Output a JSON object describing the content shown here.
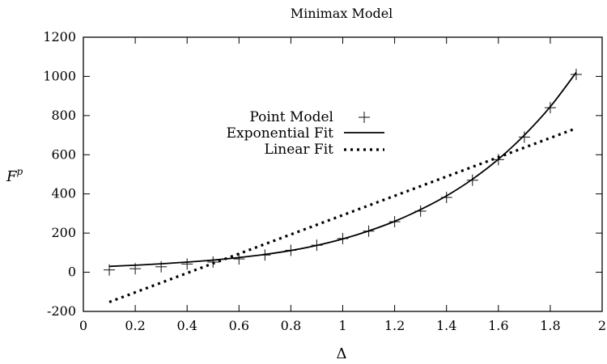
{
  "chart_data": {
    "type": "scatter",
    "title": "Minimax Model",
    "xlabel": "Δ",
    "ylabel": "F",
    "ylabel_superscript": "p",
    "xlim": [
      0,
      2
    ],
    "ylim": [
      -200,
      1200
    ],
    "x_ticks": [
      0,
      0.2,
      0.4,
      0.6,
      0.8,
      1,
      1.2,
      1.4,
      1.6,
      1.8,
      2
    ],
    "x_tick_labels": [
      "0",
      "0.2",
      "0.4",
      "0.6",
      "0.8",
      "1",
      "1.2",
      "1.4",
      "1.6",
      "1.8",
      "2"
    ],
    "y_ticks": [
      -200,
      0,
      200,
      400,
      600,
      800,
      1000,
      1200
    ],
    "y_tick_labels": [
      "-200",
      "0",
      "200",
      "400",
      "600",
      "800",
      "1000",
      "1200"
    ],
    "grid": false,
    "legend_position": "center-left",
    "series": [
      {
        "name": "Point Model",
        "style": "markers",
        "marker": "plus",
        "x": [
          0.1,
          0.2,
          0.3,
          0.4,
          0.5,
          0.6,
          0.7,
          0.8,
          0.9,
          1.0,
          1.1,
          1.2,
          1.3,
          1.4,
          1.5,
          1.6,
          1.7,
          1.8,
          1.9
        ],
        "y": [
          12,
          18,
          28,
          42,
          52,
          68,
          88,
          112,
          138,
          172,
          210,
          258,
          312,
          382,
          470,
          575,
          690,
          840,
          1010
        ]
      },
      {
        "name": "Exponential Fit",
        "style": "solid-line",
        "x": [
          0.1,
          0.2,
          0.3,
          0.4,
          0.5,
          0.6,
          0.7,
          0.8,
          0.9,
          1.0,
          1.1,
          1.2,
          1.3,
          1.4,
          1.5,
          1.6,
          1.7,
          1.8,
          1.9
        ],
        "y": [
          30,
          36,
          43,
          52,
          62,
          75,
          91,
          111,
          137,
          170,
          211,
          260,
          320,
          390,
          475,
          577,
          700,
          845,
          1020
        ]
      },
      {
        "name": "Linear Fit",
        "style": "dotted-line",
        "x": [
          0.1,
          1.9
        ],
        "y": [
          -152,
          735
        ]
      }
    ]
  }
}
